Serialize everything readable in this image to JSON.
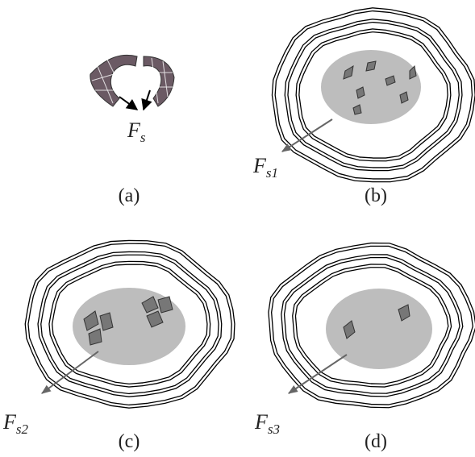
{
  "panels": [
    {
      "caption": "(a)",
      "label": {
        "symbol": "F",
        "subscript": "s"
      }
    },
    {
      "caption": "(b)",
      "label": {
        "symbol": "F",
        "subscript": "s1"
      }
    },
    {
      "caption": "(c)",
      "label": {
        "symbol": "F",
        "subscript": "s2"
      }
    },
    {
      "caption": "(d)",
      "label": {
        "symbol": "F",
        "subscript": "s3"
      }
    }
  ]
}
